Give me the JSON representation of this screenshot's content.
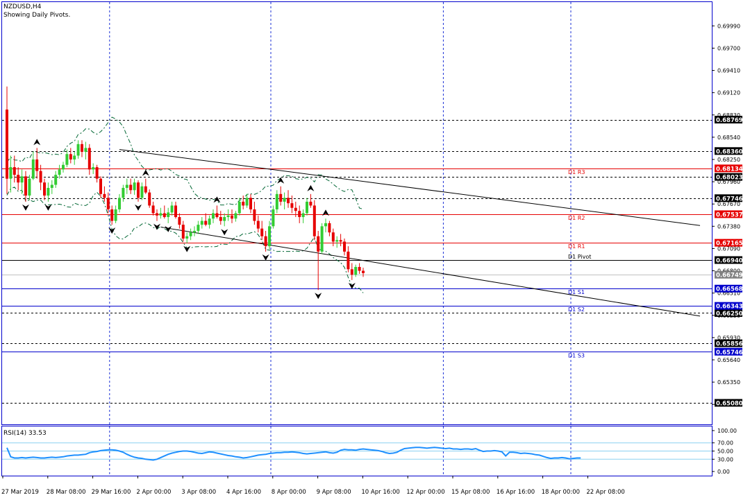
{
  "header": {
    "symbol": "NZDUSD,H4",
    "subtitle": "Showing Daily Pivots."
  },
  "colors": {
    "background": "#ffffff",
    "frame": "#0000cc",
    "grid_vertical": "#1a2fd6",
    "bull_candle": "#33cc33",
    "bear_candle": "#e60000",
    "band": "#006633",
    "trendline": "#000000",
    "resistance": "#e60000",
    "pivot": "#000000",
    "support": "#0000cc",
    "dashed_level": "#000000",
    "rsi_line": "#1e90ff",
    "rsi_levels": "#8ad0f0"
  },
  "chart_data": [
    {
      "type": "candlestick",
      "title": "NZDUSD,H4",
      "subtitle": "Showing Daily Pivots.",
      "ylim": [
        0.648,
        0.703
      ],
      "y_ticks": [
        "0.69990",
        "0.69700",
        "0.69410",
        "0.69120",
        "0.68830",
        "0.68540",
        "0.68250",
        "0.67960",
        "0.67670",
        "0.67380",
        "0.67090",
        "0.66800",
        "0.66510",
        "0.66220",
        "0.65930",
        "0.65640",
        "0.65350",
        "0.65060"
      ],
      "x_labels": [
        "27 Mar 2019",
        "28 Mar 08:00",
        "29 Mar 16:00",
        "2 Apr 00:00",
        "3 Apr 08:00",
        "4 Apr 16:00",
        "8 Apr 00:00",
        "9 Apr 08:00",
        "10 Apr 16:00",
        "12 Apr 00:00",
        "15 Apr 08:00",
        "16 Apr 16:00",
        "18 Apr 00:00",
        "22 Apr 08:00"
      ],
      "x_label_index": [
        0,
        12,
        24,
        36,
        48,
        60,
        72,
        84,
        96,
        108,
        120,
        132,
        144,
        156
      ],
      "grid_vertical_index": [
        27,
        70,
        116,
        150
      ],
      "pivots": [
        {
          "label": "D1 R3",
          "value": 0.68134,
          "color": "#e60000"
        },
        {
          "label": "D1 R2",
          "value": 0.67537,
          "color": "#e60000"
        },
        {
          "label": "D1 R1",
          "value": 0.67165,
          "color": "#e60000"
        },
        {
          "label": "D1 Pivot",
          "value": 0.6694,
          "color": "#000000"
        },
        {
          "label": "D1 S1",
          "value": 0.66568,
          "color": "#0000cc"
        },
        {
          "label": "D1 S2",
          "value": 0.66343,
          "color": "#0000cc"
        },
        {
          "label": "D1 S3",
          "value": 0.65746,
          "color": "#0000cc"
        }
      ],
      "dashed_levels": [
        0.68769,
        0.6836,
        0.68023,
        0.67746,
        0.6625,
        0.65856,
        0.6508
      ],
      "current_price": 0.66749,
      "ohlc": [
        [
          0.689,
          0.692,
          0.678,
          0.68
        ],
        [
          0.68,
          0.683,
          0.6782,
          0.6815
        ],
        [
          0.6815,
          0.683,
          0.6795,
          0.6805
        ],
        [
          0.6805,
          0.6815,
          0.6785,
          0.6795
        ],
        [
          0.6795,
          0.6812,
          0.678,
          0.6803
        ],
        [
          0.6803,
          0.681,
          0.677,
          0.6778
        ],
        [
          0.6778,
          0.6805,
          0.6772,
          0.68
        ],
        [
          0.68,
          0.6835,
          0.6798,
          0.6825
        ],
        [
          0.6825,
          0.684,
          0.68,
          0.681
        ],
        [
          0.681,
          0.6818,
          0.6785,
          0.6795
        ],
        [
          0.6795,
          0.68,
          0.6772,
          0.6778
        ],
        [
          0.6778,
          0.6795,
          0.677,
          0.6788
        ],
        [
          0.6788,
          0.6798,
          0.678,
          0.6792
        ],
        [
          0.6792,
          0.681,
          0.6788,
          0.6805
        ],
        [
          0.6805,
          0.6818,
          0.68,
          0.6812
        ],
        [
          0.6812,
          0.6822,
          0.6808,
          0.6818
        ],
        [
          0.6818,
          0.6838,
          0.6815,
          0.6832
        ],
        [
          0.6832,
          0.684,
          0.682,
          0.6825
        ],
        [
          0.6825,
          0.6835,
          0.6818,
          0.683
        ],
        [
          0.683,
          0.685,
          0.6826,
          0.6845
        ],
        [
          0.6845,
          0.685,
          0.6828,
          0.6835
        ],
        [
          0.6835,
          0.6848,
          0.6825,
          0.684
        ],
        [
          0.684,
          0.6845,
          0.6805,
          0.6812
        ],
        [
          0.6812,
          0.682,
          0.6806,
          0.6815
        ],
        [
          0.6815,
          0.6818,
          0.6795,
          0.68
        ],
        [
          0.68,
          0.6803,
          0.6775,
          0.678
        ],
        [
          0.678,
          0.679,
          0.677,
          0.6775
        ],
        [
          0.6775,
          0.6782,
          0.6755,
          0.676
        ],
        [
          0.676,
          0.6765,
          0.674,
          0.6745
        ],
        [
          0.6745,
          0.6765,
          0.6742,
          0.676
        ],
        [
          0.676,
          0.678,
          0.6756,
          0.6775
        ],
        [
          0.6775,
          0.6792,
          0.677,
          0.6788
        ],
        [
          0.6788,
          0.68,
          0.678,
          0.6792
        ],
        [
          0.6792,
          0.68,
          0.678,
          0.6785
        ],
        [
          0.6785,
          0.68,
          0.6779,
          0.6795
        ],
        [
          0.6795,
          0.6798,
          0.677,
          0.6775
        ],
        [
          0.6775,
          0.6795,
          0.6772,
          0.679
        ],
        [
          0.679,
          0.68,
          0.678,
          0.6782
        ],
        [
          0.6782,
          0.6786,
          0.6762,
          0.6765
        ],
        [
          0.6765,
          0.677,
          0.6752,
          0.6755
        ],
        [
          0.6755,
          0.676,
          0.6745,
          0.6752
        ],
        [
          0.6752,
          0.6762,
          0.6748,
          0.6755
        ],
        [
          0.6755,
          0.6765,
          0.6748,
          0.675
        ],
        [
          0.675,
          0.6762,
          0.6742,
          0.6756
        ],
        [
          0.6756,
          0.677,
          0.6752,
          0.6765
        ],
        [
          0.6765,
          0.677,
          0.6748,
          0.675
        ],
        [
          0.675,
          0.6755,
          0.6735,
          0.674
        ],
        [
          0.674,
          0.6745,
          0.6718,
          0.6722
        ],
        [
          0.6722,
          0.673,
          0.6716,
          0.6725
        ],
        [
          0.6725,
          0.6735,
          0.672,
          0.673
        ],
        [
          0.673,
          0.6738,
          0.6725,
          0.6732
        ],
        [
          0.6732,
          0.6745,
          0.6728,
          0.674
        ],
        [
          0.674,
          0.675,
          0.6735,
          0.6745
        ],
        [
          0.6745,
          0.6755,
          0.6738,
          0.674
        ],
        [
          0.674,
          0.6752,
          0.6735,
          0.6748
        ],
        [
          0.6748,
          0.676,
          0.6742,
          0.6755
        ],
        [
          0.6755,
          0.6765,
          0.6748,
          0.675
        ],
        [
          0.675,
          0.6758,
          0.674,
          0.6745
        ],
        [
          0.6745,
          0.6755,
          0.6738,
          0.675
        ],
        [
          0.675,
          0.676,
          0.6745,
          0.6752
        ],
        [
          0.6752,
          0.676,
          0.6742,
          0.6748
        ],
        [
          0.6748,
          0.6758,
          0.6744,
          0.6755
        ],
        [
          0.6755,
          0.6775,
          0.6752,
          0.677
        ],
        [
          0.677,
          0.6778,
          0.676,
          0.6765
        ],
        [
          0.6765,
          0.678,
          0.6762,
          0.6775
        ],
        [
          0.6775,
          0.678,
          0.6755,
          0.676
        ],
        [
          0.676,
          0.677,
          0.674,
          0.6745
        ],
        [
          0.6745,
          0.6752,
          0.673,
          0.6735
        ],
        [
          0.6735,
          0.6745,
          0.672,
          0.6725
        ],
        [
          0.6725,
          0.6732,
          0.6705,
          0.6712
        ],
        [
          0.6712,
          0.6745,
          0.6708,
          0.6738
        ],
        [
          0.6738,
          0.6765,
          0.6735,
          0.676
        ],
        [
          0.676,
          0.6785,
          0.6755,
          0.678
        ],
        [
          0.678,
          0.679,
          0.6765,
          0.677
        ],
        [
          0.677,
          0.6782,
          0.676,
          0.6775
        ],
        [
          0.6775,
          0.6785,
          0.6762,
          0.6768
        ],
        [
          0.6768,
          0.6778,
          0.6755,
          0.6762
        ],
        [
          0.6762,
          0.677,
          0.675,
          0.6758
        ],
        [
          0.6758,
          0.6765,
          0.6742,
          0.675
        ],
        [
          0.675,
          0.676,
          0.6742,
          0.6755
        ],
        [
          0.6755,
          0.6775,
          0.6752,
          0.677
        ],
        [
          0.677,
          0.678,
          0.6762,
          0.6765
        ],
        [
          0.6765,
          0.6772,
          0.672,
          0.6725
        ],
        [
          0.6725,
          0.6732,
          0.6655,
          0.6705
        ],
        [
          0.6705,
          0.6742,
          0.6702,
          0.6738
        ],
        [
          0.6738,
          0.6748,
          0.673,
          0.6742
        ],
        [
          0.6742,
          0.6745,
          0.6725,
          0.673
        ],
        [
          0.673,
          0.6735,
          0.6712,
          0.6718
        ],
        [
          0.6718,
          0.6725,
          0.671,
          0.672
        ],
        [
          0.672,
          0.6728,
          0.6712,
          0.6718
        ],
        [
          0.6718,
          0.6722,
          0.67,
          0.6705
        ],
        [
          0.6705,
          0.6712,
          0.6678,
          0.6682
        ],
        [
          0.6682,
          0.669,
          0.6668,
          0.6675
        ],
        [
          0.6675,
          0.6688,
          0.6672,
          0.6685
        ],
        [
          0.6685,
          0.669,
          0.6676,
          0.668
        ],
        [
          0.668,
          0.6684,
          0.6672,
          0.6677
        ]
      ]
    },
    {
      "type": "line",
      "title": "RSI(14) 33.53",
      "ylim": [
        0,
        100
      ],
      "y_ticks": [
        "100.00",
        "70.00",
        "50.00",
        "30.00",
        "0.00"
      ],
      "levels": [
        70,
        50,
        30
      ],
      "values": [
        58,
        36,
        33,
        33,
        34,
        33,
        34,
        35,
        34,
        33,
        33,
        34,
        35,
        34,
        35,
        36,
        38,
        39,
        40,
        40,
        41,
        42,
        46,
        48,
        49,
        51,
        52,
        53,
        53,
        52,
        50,
        47,
        42,
        38,
        35,
        33,
        32,
        30,
        29,
        28,
        30,
        34,
        38,
        42,
        45,
        47,
        49,
        50,
        50,
        49,
        47,
        45,
        44,
        46,
        48,
        47,
        45,
        43,
        41,
        39,
        38,
        36,
        35,
        33,
        34,
        36,
        38,
        40,
        41,
        42,
        44,
        45,
        46,
        46,
        47,
        47,
        48,
        47,
        46,
        44,
        43,
        44,
        45,
        46,
        47,
        48,
        46,
        45,
        47,
        52,
        54,
        53,
        53,
        52,
        54,
        55,
        54,
        53,
        52,
        51,
        49,
        46,
        44,
        45,
        47,
        52,
        56,
        57,
        58,
        59,
        59,
        58,
        57,
        58,
        59,
        58,
        57,
        56,
        57,
        55,
        55,
        54,
        55,
        55,
        54,
        56,
        52,
        49,
        50,
        50,
        51,
        50,
        48,
        38,
        47,
        47,
        46,
        44,
        45,
        44,
        43,
        41,
        40,
        37,
        34,
        32,
        33,
        33,
        34,
        33,
        31,
        32,
        33,
        33
      ]
    }
  ]
}
